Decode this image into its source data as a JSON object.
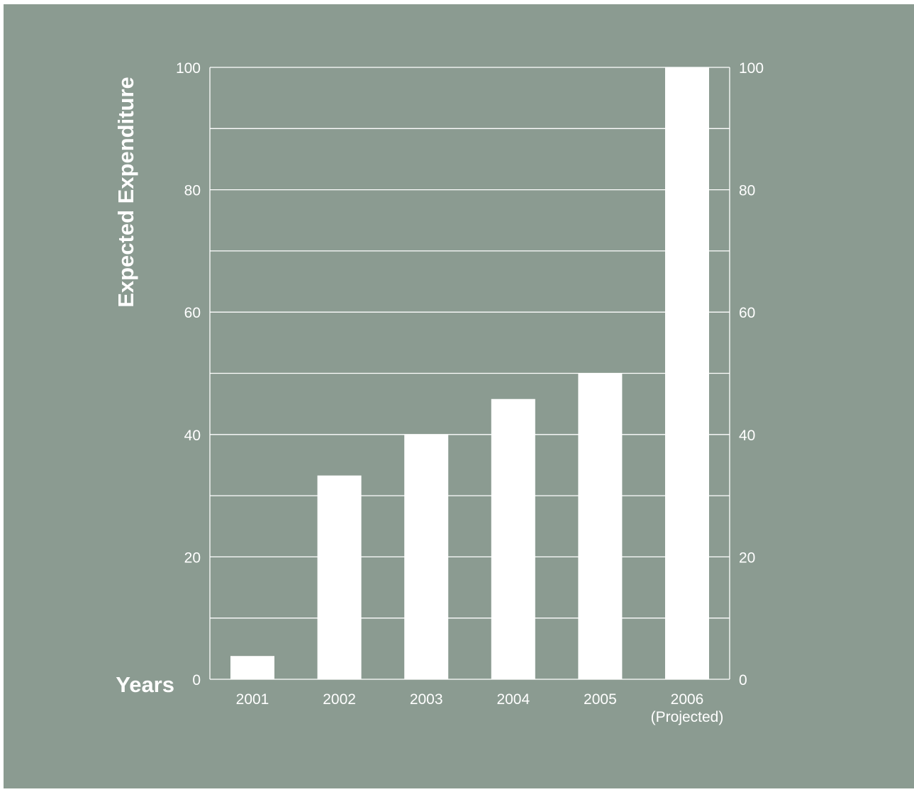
{
  "colors": {
    "background": "#8b9b91",
    "bars": "#ffffff",
    "gridlines": "#ffffff",
    "text": "#ffffff"
  },
  "chart_data": {
    "type": "bar",
    "title": "",
    "xlabel": "Years",
    "ylabel": "Expected Expenditure",
    "categories": [
      "2001",
      "2002",
      "2003",
      "2004",
      "2005",
      "2006"
    ],
    "category_sublabels": [
      "",
      "",
      "",
      "",
      "",
      "(Projected)"
    ],
    "values": [
      3.8,
      33.3,
      40,
      45.8,
      50,
      100
    ],
    "ylim": [
      0,
      100
    ],
    "yticks": [
      "0",
      "20",
      "40",
      "60",
      "80",
      "100"
    ],
    "minor_gridlines_every": 10,
    "grid": true,
    "secondary_y_axis": true,
    "legend": "none"
  }
}
